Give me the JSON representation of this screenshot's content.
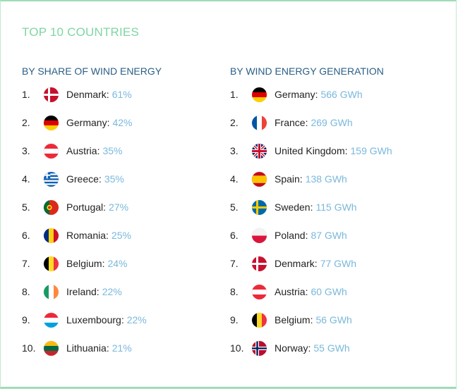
{
  "title": "TOP 10 COUNTRIES",
  "share": {
    "heading": "BY SHARE OF WIND ENERGY",
    "items": [
      {
        "rank": "1.",
        "country": "Denmark:",
        "value": "61%",
        "flag": "dk"
      },
      {
        "rank": "2.",
        "country": "Germany:",
        "value": "42%",
        "flag": "de"
      },
      {
        "rank": "3.",
        "country": "Austria:",
        "value": "35%",
        "flag": "at"
      },
      {
        "rank": "4.",
        "country": "Greece:",
        "value": "35%",
        "flag": "gr"
      },
      {
        "rank": "5.",
        "country": "Portugal:",
        "value": "27%",
        "flag": "pt"
      },
      {
        "rank": "6.",
        "country": "Romania:",
        "value": "25%",
        "flag": "ro"
      },
      {
        "rank": "7.",
        "country": "Belgium:",
        "value": "24%",
        "flag": "be"
      },
      {
        "rank": "8.",
        "country": "Ireland:",
        "value": "22%",
        "flag": "ie"
      },
      {
        "rank": "9.",
        "country": "Luxembourg:",
        "value": "22%",
        "flag": "lu"
      },
      {
        "rank": "10.",
        "country": "Lithuania:",
        "value": "21%",
        "flag": "lt"
      }
    ]
  },
  "generation": {
    "heading": "BY WIND ENERGY GENERATION",
    "items": [
      {
        "rank": "1.",
        "country": "Germany:",
        "value": "566 GWh",
        "flag": "de"
      },
      {
        "rank": "2.",
        "country": "France:",
        "value": "269 GWh",
        "flag": "fr"
      },
      {
        "rank": "3.",
        "country": "United Kingdom:",
        "value": "159 GWh",
        "flag": "gb"
      },
      {
        "rank": "4.",
        "country": "Spain:",
        "value": "138 GWh",
        "flag": "es"
      },
      {
        "rank": "5.",
        "country": "Sweden:",
        "value": "115 GWh",
        "flag": "se"
      },
      {
        "rank": "6.",
        "country": "Poland:",
        "value": "87 GWh",
        "flag": "pl"
      },
      {
        "rank": "7.",
        "country": "Denmark:",
        "value": "77 GWh",
        "flag": "dk"
      },
      {
        "rank": "8.",
        "country": "Austria:",
        "value": "60 GWh",
        "flag": "at"
      },
      {
        "rank": "9.",
        "country": "Belgium:",
        "value": "56 GWh",
        "flag": "be"
      },
      {
        "rank": "10.",
        "country": "Norway:",
        "value": "55 GWh",
        "flag": "no"
      }
    ]
  }
}
